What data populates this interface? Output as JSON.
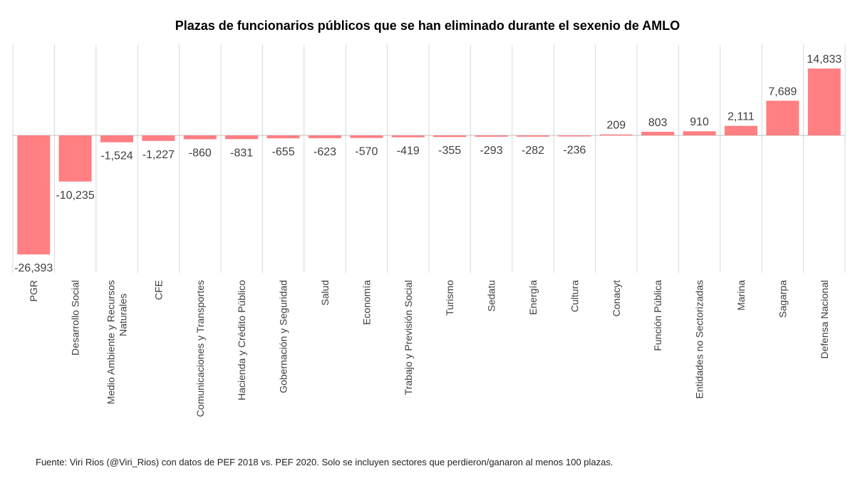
{
  "chart_data": {
    "type": "bar",
    "title": "Plazas de funcionarios  públicos que se han eliminado durante el sexenio de AMLO",
    "source": "Fuente: Viri Rios (@Viri_Rios) con datos de PEF 2018 vs. PEF 2020. Solo se incluyen sectores que perdieron/ganaron al menos 100 plazas.",
    "xlabel": "",
    "ylabel": "",
    "ylim": [
      -26393,
      14833
    ],
    "grid": "vertical",
    "categories": [
      [
        "PGR"
      ],
      [
        "Desarrollo Social"
      ],
      [
        "Medio Ambiente y Recursos",
        "Naturales"
      ],
      [
        "CFE"
      ],
      [
        "Comunicaciones y Transportes"
      ],
      [
        "Hacienda y Crédito Público"
      ],
      [
        "Gobernación y Seguridad"
      ],
      [
        "Salud"
      ],
      [
        "Economía"
      ],
      [
        "Trabajo y Previsión Social"
      ],
      [
        "Turismo"
      ],
      [
        "Sedatu"
      ],
      [
        "Energía"
      ],
      [
        "Cultura"
      ],
      [
        "Conacyt"
      ],
      [
        "Función Pública"
      ],
      [
        "Entidades no Sectorizadas"
      ],
      [
        "Marina"
      ],
      [
        "Sagarpa"
      ],
      [
        "Defensa Nacional"
      ]
    ],
    "values": [
      -26393,
      -10235,
      -1524,
      -1227,
      -860,
      -831,
      -655,
      -623,
      -570,
      -419,
      -355,
      -293,
      -282,
      -236,
      209,
      803,
      910,
      2111,
      7689,
      14833
    ],
    "value_labels": [
      "-26,393",
      "-10,235",
      "-1,524",
      "-1,227",
      "-860",
      "-831",
      "-655",
      "-623",
      "-570",
      "-419",
      "-355",
      "-293",
      "-282",
      "-236",
      "209",
      "803",
      "910",
      "2,111",
      "7,689",
      "14,833"
    ],
    "bar_color": "#ff7f82",
    "grid_color": "#d9d9d9",
    "axis_color": "#bfbfbf"
  }
}
